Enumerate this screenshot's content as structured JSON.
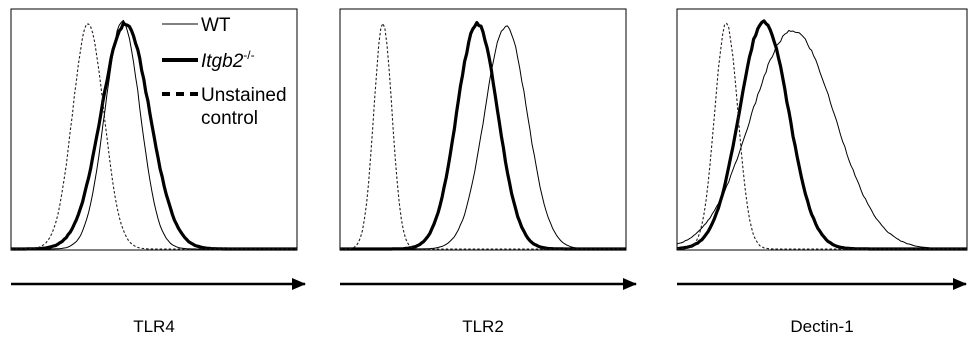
{
  "chart_data": [
    {
      "type": "area",
      "panel": "TLR4",
      "xlabel": "TLR4",
      "ylabel": "",
      "grid": false,
      "legend": {
        "placement": "top-right",
        "entries": [
          {
            "label": "WT",
            "style": "thin-solid"
          },
          {
            "label": "Itgb2",
            "superscript": "-/-",
            "style": "thick-solid"
          },
          {
            "label_line1": "Unstained",
            "label_line2": "control",
            "style": "dashed"
          }
        ]
      },
      "series": [
        {
          "name": "WT",
          "style": "thin-solid",
          "peak": 0.39,
          "width": 0.062,
          "height": 0.96
        },
        {
          "name": "Itgb2-/-",
          "style": "thick-solid",
          "peak": 0.4,
          "width": 0.085,
          "height": 0.95
        },
        {
          "name": "Unstained control",
          "style": "dashed",
          "peak": 0.27,
          "width": 0.055,
          "height": 0.95
        }
      ]
    },
    {
      "type": "area",
      "panel": "TLR2",
      "xlabel": "TLR2",
      "ylabel": "",
      "grid": false,
      "series": [
        {
          "name": "WT",
          "style": "thin-solid",
          "peak": 0.58,
          "width": 0.075,
          "height": 0.94
        },
        {
          "name": "Itgb2-/-",
          "style": "thick-solid",
          "peak": 0.48,
          "width": 0.072,
          "height": 0.95
        },
        {
          "name": "Unstained control",
          "style": "dashed",
          "peak": 0.15,
          "width": 0.032,
          "height": 0.95
        }
      ]
    },
    {
      "type": "area",
      "panel": "Dectin-1",
      "xlabel": "Dectin-1",
      "ylabel": "",
      "grid": false,
      "series": [
        {
          "name": "WT",
          "style": "thin-solid",
          "peak": 0.4,
          "width": 0.145,
          "height": 0.92
        },
        {
          "name": "Itgb2-/-",
          "style": "thick-solid",
          "peak": 0.3,
          "width": 0.085,
          "height": 0.96
        },
        {
          "name": "Unstained control",
          "style": "dashed",
          "peak": 0.17,
          "width": 0.04,
          "height": 0.95
        }
      ]
    }
  ],
  "colors": {
    "axis": "#000000",
    "curve": "#000000",
    "background": "#ffffff"
  }
}
